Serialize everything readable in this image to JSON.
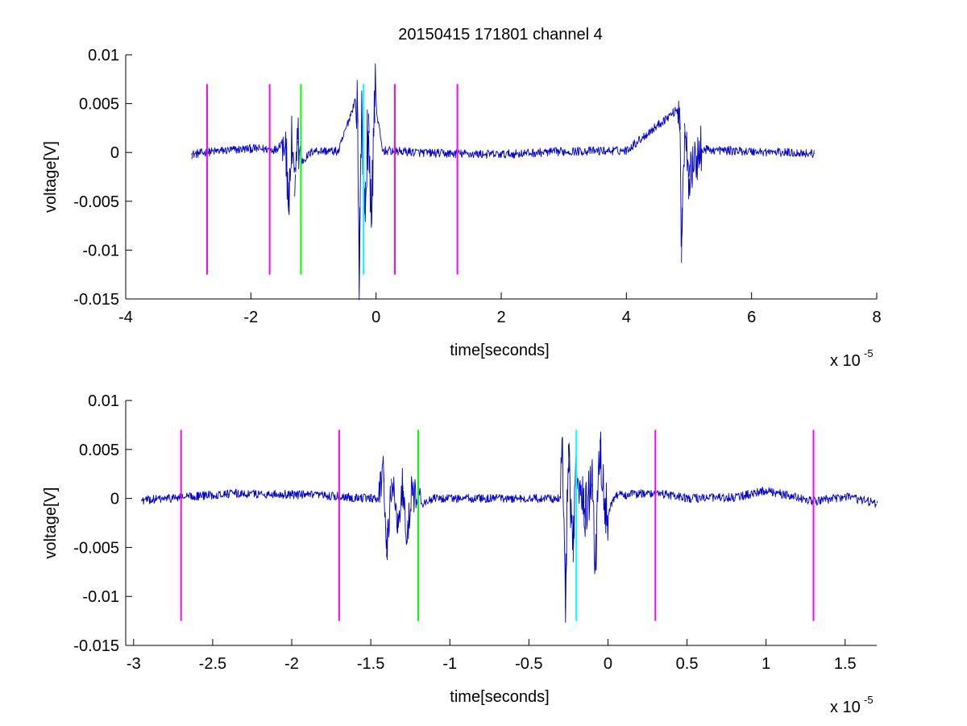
{
  "figure": {
    "title": "20150415 171801 channel 4"
  },
  "chart_data": [
    {
      "type": "line",
      "xlabel": "time[seconds]",
      "ylabel": "voltage[V]",
      "x_exponent_label": "x 10",
      "x_exponent": "-5",
      "xlim": [
        -4,
        8
      ],
      "ylim": [
        -0.015,
        0.01
      ],
      "xticks": [
        -4,
        -2,
        0,
        2,
        4,
        6,
        8
      ],
      "xtick_labels": [
        "-4",
        "-2",
        "0",
        "2",
        "4",
        "6",
        "8"
      ],
      "yticks": [
        -0.015,
        -0.01,
        -0.005,
        0,
        0.005,
        0.01
      ],
      "ytick_labels": [
        "-0.015",
        "-0.01",
        "-0.005",
        "0",
        "0.005",
        "0.01"
      ],
      "signal": {
        "color": "#0000c8",
        "x_range": [
          -2.95,
          7.0
        ],
        "points": [
          [
            -2.95,
            -0.0002
          ],
          [
            -2.6,
            0.0001
          ],
          [
            -2.0,
            0.0004
          ],
          [
            -1.6,
            0.0003
          ],
          [
            -1.45,
            0.0016
          ],
          [
            -1.4,
            -0.006
          ],
          [
            -1.35,
            0.001
          ],
          [
            -1.3,
            -0.0045
          ],
          [
            -1.25,
            0.0012
          ],
          [
            -1.2,
            -0.001
          ],
          [
            -1.0,
            0.0002
          ],
          [
            -0.6,
            0.0001
          ],
          [
            -0.3,
            0.006
          ],
          [
            -0.27,
            -0.0112
          ],
          [
            -0.23,
            0.005
          ],
          [
            -0.18,
            -0.006
          ],
          [
            -0.12,
            0.004
          ],
          [
            -0.07,
            -0.0074
          ],
          [
            -0.03,
            0.006
          ],
          [
            0.1,
            0.0002
          ],
          [
            1.0,
            -0.0001
          ],
          [
            2.0,
            -0.0002
          ],
          [
            3.0,
            0.0001
          ],
          [
            4.0,
            0.0002
          ],
          [
            4.85,
            0.0046
          ],
          [
            4.88,
            -0.0113
          ],
          [
            4.93,
            0.003
          ],
          [
            5.0,
            -0.0025
          ],
          [
            5.2,
            0.0003
          ],
          [
            6.0,
            0.0001
          ],
          [
            7.0,
            -0.0001
          ]
        ],
        "bursts": [
          {
            "start": -1.5,
            "end": -1.2,
            "amp": 0.003
          },
          {
            "start": -0.32,
            "end": 0.0,
            "amp": 0.004
          },
          {
            "start": 4.82,
            "end": 5.2,
            "amp": 0.0025
          }
        ]
      },
      "markers": [
        {
          "x": -2.7,
          "color": "#ff00ff"
        },
        {
          "x": -1.7,
          "color": "#ff00ff"
        },
        {
          "x": -1.2,
          "color": "#00ff00"
        },
        {
          "x": -0.2,
          "color": "#00ffff"
        },
        {
          "x": 0.3,
          "color": "#ff00ff"
        },
        {
          "x": 1.3,
          "color": "#ff00ff"
        }
      ],
      "marker_range": [
        -0.0125,
        0.007
      ]
    },
    {
      "type": "line",
      "xlabel": "time[seconds]",
      "ylabel": "voltage[V]",
      "x_exponent_label": "x 10",
      "x_exponent": "-5",
      "xlim": [
        -3.05,
        1.7
      ],
      "ylim": [
        -0.015,
        0.01
      ],
      "xticks": [
        -3,
        -2.5,
        -2,
        -1.5,
        -1,
        -0.5,
        0,
        0.5,
        1,
        1.5
      ],
      "xtick_labels": [
        "-3",
        "-2.5",
        "-2",
        "-1.5",
        "-1",
        "-0.5",
        "0",
        "0.5",
        "1",
        "1.5"
      ],
      "yticks": [
        -0.015,
        -0.01,
        -0.005,
        0,
        0.005,
        0.01
      ],
      "ytick_labels": [
        "-0.015",
        "-0.01",
        "-0.005",
        "0",
        "0.005",
        "0.01"
      ],
      "signal": {
        "color": "#0000c8",
        "x_range": [
          -2.95,
          1.7
        ],
        "points": [
          [
            -2.95,
            -0.0002
          ],
          [
            -2.7,
            0.0001
          ],
          [
            -2.4,
            0.0005
          ],
          [
            -2.0,
            0.0004
          ],
          [
            -1.7,
            0.0002
          ],
          [
            -1.5,
            0.0
          ],
          [
            -1.45,
            0.0
          ],
          [
            -1.42,
            0.0033
          ],
          [
            -1.4,
            -0.006
          ],
          [
            -1.37,
            0.002
          ],
          [
            -1.33,
            -0.0035
          ],
          [
            -1.3,
            0.0018
          ],
          [
            -1.27,
            -0.0045
          ],
          [
            -1.24,
            0.0017
          ],
          [
            -1.2,
            -0.0008
          ],
          [
            -1.1,
            0.0
          ],
          [
            -0.8,
            0.0
          ],
          [
            -0.5,
            0.0
          ],
          [
            -0.3,
            0.0
          ],
          [
            -0.29,
            0.006
          ],
          [
            -0.27,
            -0.0112
          ],
          [
            -0.25,
            0.0055
          ],
          [
            -0.22,
            -0.0065
          ],
          [
            -0.2,
            0.004
          ],
          [
            -0.15,
            -0.002
          ],
          [
            -0.1,
            0.0015
          ],
          [
            -0.08,
            -0.0073
          ],
          [
            -0.05,
            0.006
          ],
          [
            -0.02,
            -0.002
          ],
          [
            0.05,
            0.0003
          ],
          [
            0.3,
            0.0006
          ],
          [
            0.5,
            0.0
          ],
          [
            0.8,
            0.0001
          ],
          [
            1.0,
            0.0008
          ],
          [
            1.3,
            -0.0003
          ],
          [
            1.5,
            0.0002
          ],
          [
            1.7,
            -0.0005
          ]
        ],
        "bursts": [
          {
            "start": -1.45,
            "end": -1.18,
            "amp": 0.002
          },
          {
            "start": -0.3,
            "end": 0.0,
            "amp": 0.003
          }
        ]
      },
      "markers": [
        {
          "x": -2.7,
          "color": "#ff00ff"
        },
        {
          "x": -1.7,
          "color": "#ff00ff"
        },
        {
          "x": -1.2,
          "color": "#00ff00"
        },
        {
          "x": -0.2,
          "color": "#00ffff"
        },
        {
          "x": 0.3,
          "color": "#ff00ff"
        },
        {
          "x": 1.3,
          "color": "#ff00ff"
        }
      ],
      "marker_range": [
        -0.0125,
        0.007
      ]
    }
  ]
}
